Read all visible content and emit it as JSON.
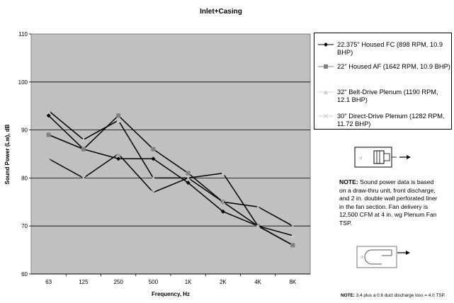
{
  "chart_data": {
    "type": "line",
    "title": "Inlet+Casing",
    "xlabel": "Frequency, Hz",
    "ylabel": "Sound Power (Lw), dB",
    "categories": [
      "63",
      "125",
      "250",
      "500",
      "1K",
      "2K",
      "4K",
      "8K"
    ],
    "ylim": [
      60,
      110
    ],
    "yticks": [
      "60",
      "70",
      "80",
      "90",
      "100",
      "110"
    ],
    "grid": true,
    "legend_position": "right",
    "series": [
      {
        "name": "22.375\" Housed FC (898 RPM, 10.9 BHP)",
        "values": [
          93,
          86,
          84,
          84,
          79,
          73,
          70,
          66
        ],
        "marker": "diamond",
        "marker_color": "#000000"
      },
      {
        "name": "22\" Housed AF (1642 RPM, 10.9 BHP)",
        "values": [
          89,
          86,
          93,
          86,
          81,
          75,
          70,
          66
        ],
        "marker": "square",
        "marker_color": "#808080"
      },
      {
        "name": "32\" Belt-Drive Plenum (1190 RPM, 12.1 BHP)",
        "values": [
          94,
          88,
          92,
          80,
          80,
          81,
          70,
          68
        ],
        "marker": "triangle",
        "marker_color": "#c8c8c8"
      },
      {
        "name": "30\" Direct-Drive Plenum (1282 RPM, 11.72 BHP)",
        "values": [
          84,
          80,
          85,
          77,
          80,
          75,
          74,
          70
        ],
        "marker": "x",
        "marker_color": "#c8c8c8"
      }
    ],
    "colors": {
      "plot_background": "#c0c0c0",
      "line": "#000000",
      "gridline": "#000000"
    }
  },
  "notes": {
    "main_label": "NOTE:",
    "main_text": " Sound power data is based on a draw-thru unit, front discharge, and 2 in. double wall perforated liner in the fan section. Fan delivery is 12,500 CFM at 4 in. wg Plenum Fan TSP.",
    "bottom_label": "NOTE:",
    "bottom_text": " 3.4 plus a 0.6 duct discharge loss = 4.0 TSP."
  },
  "icons": [
    "plenum-fan-diagram-icon",
    "housed-fan-diagram-icon"
  ]
}
